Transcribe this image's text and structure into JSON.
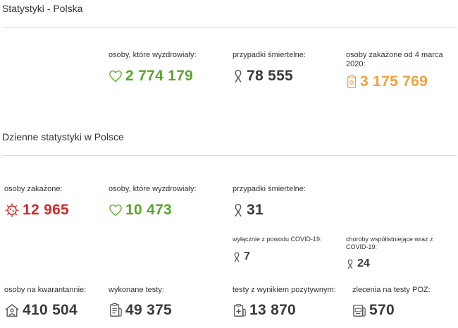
{
  "summary": {
    "title": "Statystyki - Polska",
    "recovered": {
      "label": "osoby, które wyzdrowiały:",
      "value": "2 774 179",
      "icon": "heart-icon"
    },
    "deaths": {
      "label": "przypadki śmiertelne:",
      "value": "78 555",
      "icon": "ribbon-icon"
    },
    "infected": {
      "label": "osoby zakażone od 4 marca 2020:",
      "value": "3 175 769",
      "icon": "clipboard-virus-icon"
    }
  },
  "daily": {
    "title": "Dzienne statystyki w Polsce",
    "infected": {
      "label": "osoby zakażone:",
      "value": "12 965",
      "icon": "virus-icon"
    },
    "recovered": {
      "label": "osoby, które wyzdrowiały:",
      "value": "10 473",
      "icon": "heart-icon"
    },
    "deaths": {
      "label": "przypadki śmiertelne:",
      "value": "31",
      "icon": "ribbon-icon"
    },
    "deaths_covid_only": {
      "label": "wyłącznie z powodu COVID-19:",
      "value": "7",
      "icon": "ribbon-icon"
    },
    "deaths_comorbid": {
      "label": "choroby współistniejące wraz z COVID-19:",
      "value": "24",
      "icon": "ribbon-icon"
    },
    "quarantine": {
      "label": "osoby na kwarantannie:",
      "value": "410 504",
      "icon": "house-person-icon"
    },
    "tests": {
      "label": "wykonane testy:",
      "value": "49 375",
      "icon": "clipboard-list-icon"
    },
    "positive_tests": {
      "label": "testy z wynikiem pozytywnym:",
      "value": "13 870",
      "icon": "test-positive-icon"
    },
    "poz_orders": {
      "label": "zlecenia na testy POZ:",
      "value": "570",
      "icon": "poz-test-icon"
    }
  },
  "colors": {
    "green": "#5aa52d",
    "red": "#d42a2a",
    "orange": "#f2a23a",
    "dark": "#3a3a3a"
  }
}
